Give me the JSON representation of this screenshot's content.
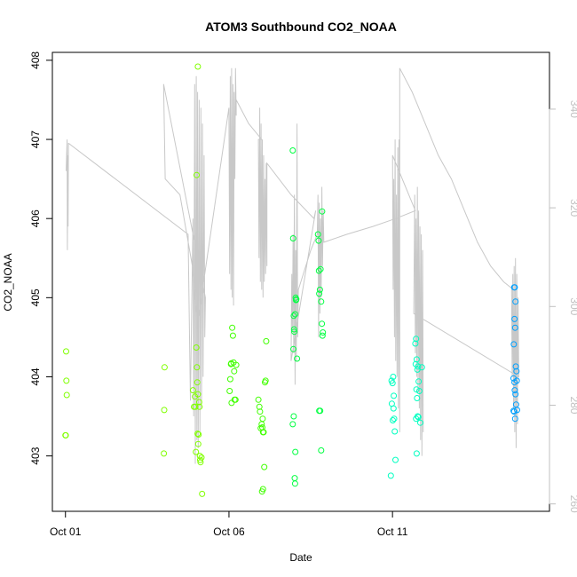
{
  "chart_data": {
    "type": "scatter",
    "title": "ATOM3 Southbound CO2_NOAA",
    "xlabel": "Date",
    "ylabel": "CO2_NOAA",
    "x_ticks": [
      "Oct 01",
      "Oct 06",
      "Oct 11"
    ],
    "x_tick_values": [
      0,
      5,
      10
    ],
    "x_range": [
      -0.4,
      14.8
    ],
    "y_ticks": [
      "403",
      "404",
      "405",
      "406",
      "407",
      "408"
    ],
    "ylim": [
      402.3,
      408.1
    ],
    "y2_ticks": [
      "260",
      "280",
      "300",
      "320",
      "340"
    ],
    "y2lim": [
      258.5,
      351.5
    ],
    "grid": false,
    "line_color": "#c8c8c8",
    "series": [
      {
        "color": "#80ff00",
        "points": [
          [
            0.02,
            404.32
          ],
          [
            0.03,
            403.95
          ],
          [
            0.04,
            403.77
          ],
          [
            0.0,
            403.26
          ],
          [
            0.01,
            403.26
          ],
          [
            3.03,
            404.12
          ],
          [
            3.02,
            403.58
          ],
          [
            3.01,
            403.03
          ],
          [
            3.9,
            403.83
          ],
          [
            3.93,
            403.62
          ],
          [
            3.96,
            403.75
          ],
          [
            3.97,
            403.62
          ],
          [
            3.99,
            403.05
          ],
          [
            4.0,
            404.37
          ],
          [
            4.02,
            404.12
          ],
          [
            4.03,
            403.93
          ],
          [
            4.05,
            403.78
          ],
          [
            4.06,
            403.15
          ],
          [
            4.07,
            403.27
          ],
          [
            4.09,
            403.68
          ],
          [
            4.1,
            403.62
          ],
          [
            4.11,
            403.0
          ],
          [
            4.12,
            402.95
          ],
          [
            4.13,
            402.92
          ],
          [
            4.16,
            402.98
          ],
          [
            4.18,
            402.52
          ],
          [
            4.04,
            403.28
          ],
          [
            4.01,
            406.55
          ],
          [
            4.05,
            407.92
          ]
        ]
      },
      {
        "color": "#40ff00",
        "points": [
          [
            5.02,
            403.82
          ],
          [
            5.04,
            403.97
          ],
          [
            5.06,
            404.16
          ],
          [
            5.07,
            404.17
          ],
          [
            5.08,
            403.67
          ],
          [
            5.1,
            404.62
          ],
          [
            5.12,
            404.52
          ],
          [
            5.14,
            404.18
          ],
          [
            5.16,
            404.07
          ],
          [
            5.17,
            403.71
          ],
          [
            5.2,
            403.71
          ],
          [
            5.22,
            404.15
          ],
          [
            5.9,
            403.71
          ],
          [
            5.93,
            403.62
          ],
          [
            5.95,
            403.56
          ],
          [
            5.97,
            403.35
          ],
          [
            6.0,
            403.4
          ],
          [
            6.02,
            403.36
          ],
          [
            6.03,
            403.47
          ],
          [
            6.04,
            403.3
          ],
          [
            6.06,
            403.3
          ],
          [
            6.08,
            402.86
          ],
          [
            6.1,
            403.93
          ],
          [
            6.12,
            403.95
          ],
          [
            6.14,
            404.45
          ],
          [
            6.01,
            402.55
          ],
          [
            6.04,
            402.58
          ]
        ]
      },
      {
        "color": "#00ff40",
        "points": [
          [
            6.95,
            406.86
          ],
          [
            6.96,
            405.75
          ],
          [
            6.98,
            404.77
          ],
          [
            6.99,
            404.6
          ],
          [
            7.0,
            404.57
          ],
          [
            7.02,
            404.79
          ],
          [
            7.04,
            405.0
          ],
          [
            7.05,
            404.97
          ],
          [
            7.06,
            404.98
          ],
          [
            6.97,
            404.35
          ],
          [
            7.08,
            404.23
          ],
          [
            6.98,
            403.5
          ],
          [
            6.95,
            403.4
          ],
          [
            7.03,
            403.05
          ],
          [
            7.01,
            402.72
          ],
          [
            7.02,
            402.65
          ],
          [
            7.72,
            405.8
          ],
          [
            7.74,
            405.72
          ],
          [
            7.75,
            405.34
          ],
          [
            7.76,
            405.05
          ],
          [
            7.78,
            405.1
          ],
          [
            7.8,
            405.36
          ],
          [
            7.82,
            404.95
          ],
          [
            7.84,
            404.67
          ],
          [
            7.86,
            404.52
          ],
          [
            7.87,
            404.56
          ],
          [
            7.85,
            406.09
          ],
          [
            7.76,
            403.57
          ],
          [
            7.79,
            403.57
          ],
          [
            7.82,
            403.07
          ]
        ]
      },
      {
        "color": "#00ffc0",
        "points": [
          [
            9.97,
            403.95
          ],
          [
            10.0,
            403.92
          ],
          [
            10.02,
            404.0
          ],
          [
            10.04,
            403.76
          ],
          [
            10.03,
            403.6
          ],
          [
            9.98,
            403.66
          ],
          [
            10.01,
            403.45
          ],
          [
            10.05,
            403.47
          ],
          [
            10.07,
            403.31
          ],
          [
            10.09,
            402.95
          ],
          [
            9.95,
            402.75
          ],
          [
            10.7,
            404.42
          ],
          [
            10.72,
            404.48
          ],
          [
            10.74,
            404.22
          ],
          [
            10.76,
            404.09
          ],
          [
            10.78,
            404.13
          ],
          [
            10.8,
            403.94
          ],
          [
            10.82,
            403.82
          ],
          [
            10.71,
            404.16
          ],
          [
            10.73,
            403.84
          ],
          [
            10.75,
            403.73
          ],
          [
            10.77,
            403.5
          ],
          [
            10.79,
            403.49
          ],
          [
            10.72,
            403.47
          ],
          [
            10.85,
            403.42
          ],
          [
            10.74,
            403.03
          ],
          [
            10.9,
            404.12
          ]
        ]
      },
      {
        "color": "#00a0ff",
        "points": [
          [
            13.72,
            405.13
          ],
          [
            13.74,
            405.13
          ],
          [
            13.76,
            404.95
          ],
          [
            13.73,
            404.73
          ],
          [
            13.75,
            404.62
          ],
          [
            13.71,
            404.41
          ],
          [
            13.77,
            404.13
          ],
          [
            13.79,
            404.07
          ],
          [
            13.7,
            403.98
          ],
          [
            13.73,
            403.93
          ],
          [
            13.8,
            403.95
          ],
          [
            13.74,
            403.83
          ],
          [
            13.76,
            403.78
          ],
          [
            13.78,
            403.65
          ],
          [
            13.7,
            403.57
          ],
          [
            13.72,
            403.56
          ],
          [
            13.81,
            403.58
          ],
          [
            13.75,
            403.47
          ]
        ]
      }
    ],
    "line_path": [
      [
        0.02,
        406.6
      ],
      [
        0.05,
        407.0
      ],
      [
        0.06,
        405.6
      ],
      [
        0.07,
        406.8
      ],
      [
        0.08,
        405.9
      ],
      [
        0.09,
        406.95
      ],
      [
        0.1,
        406.95
      ],
      [
        3.75,
        405.8
      ],
      [
        3.82,
        403.7
      ],
      [
        3.9,
        406.0
      ],
      [
        3.92,
        403.5
      ],
      [
        3.95,
        407.7
      ],
      [
        3.97,
        402.9
      ],
      [
        4.0,
        407.8
      ],
      [
        4.02,
        403.2
      ],
      [
        4.04,
        407.6
      ],
      [
        4.06,
        403.1
      ],
      [
        4.09,
        407.5
      ],
      [
        4.11,
        403.3
      ],
      [
        4.14,
        407.4
      ],
      [
        4.16,
        403.6
      ],
      [
        4.19,
        407.2
      ],
      [
        4.21,
        404.0
      ],
      [
        4.24,
        406.8
      ],
      [
        4.26,
        404.5
      ],
      [
        4.28,
        405.0
      ],
      [
        3.0,
        407.7
      ],
      [
        3.05,
        406.5
      ],
      [
        3.5,
        406.3
      ],
      [
        3.88,
        405.4
      ],
      [
        3.95,
        405.0
      ],
      [
        4.05,
        404.7
      ],
      [
        5.0,
        407.4
      ],
      [
        5.02,
        405.3
      ],
      [
        5.04,
        407.8
      ],
      [
        5.06,
        405.1
      ],
      [
        5.08,
        407.9
      ],
      [
        5.1,
        405.0
      ],
      [
        5.12,
        407.7
      ],
      [
        5.14,
        404.9
      ],
      [
        5.16,
        407.6
      ],
      [
        5.18,
        406.5
      ],
      [
        5.2,
        407.9
      ],
      [
        5.22,
        407.3
      ],
      [
        5.22,
        407.5
      ],
      [
        5.6,
        407.2
      ],
      [
        6.0,
        407.0
      ],
      [
        5.9,
        407.0
      ],
      [
        5.92,
        405.5
      ],
      [
        5.94,
        407.4
      ],
      [
        5.96,
        405.2
      ],
      [
        5.98,
        407.2
      ],
      [
        6.0,
        405.1
      ],
      [
        6.02,
        407.0
      ],
      [
        6.04,
        405.0
      ],
      [
        6.06,
        406.8
      ],
      [
        6.08,
        405.2
      ],
      [
        6.1,
        406.5
      ],
      [
        6.12,
        405.3
      ],
      [
        6.14,
        406.7
      ],
      [
        6.16,
        405.4
      ],
      [
        6.16,
        406.7
      ],
      [
        6.9,
        406.3
      ],
      [
        7.6,
        406.0
      ],
      [
        7.65,
        406.1
      ],
      [
        6.9,
        404.2
      ],
      [
        6.92,
        405.3
      ],
      [
        6.94,
        404.6
      ],
      [
        6.96,
        405.8
      ],
      [
        6.98,
        404.3
      ],
      [
        7.0,
        406.3
      ],
      [
        7.02,
        403.9
      ],
      [
        7.04,
        405.6
      ],
      [
        7.06,
        404.2
      ],
      [
        7.08,
        407.2
      ],
      [
        7.1,
        404.5
      ],
      [
        7.12,
        405.1
      ],
      [
        7.12,
        405.1
      ],
      [
        7.5,
        405.6
      ],
      [
        7.7,
        405.8
      ],
      [
        7.72,
        406.3
      ],
      [
        7.74,
        404.5
      ],
      [
        7.76,
        406.2
      ],
      [
        7.78,
        404.8
      ],
      [
        7.8,
        406.0
      ],
      [
        7.82,
        405.0
      ],
      [
        7.84,
        406.4
      ],
      [
        7.86,
        405.4
      ],
      [
        7.88,
        406.1
      ],
      [
        7.9,
        405.7
      ],
      [
        7.9,
        405.7
      ],
      [
        8.6,
        405.8
      ],
      [
        9.4,
        405.9
      ],
      [
        10.1,
        406.0
      ],
      [
        10.7,
        406.1
      ],
      [
        10.0,
        406.8
      ],
      [
        10.02,
        405.1
      ],
      [
        10.04,
        406.5
      ],
      [
        10.06,
        404.5
      ],
      [
        10.08,
        407.0
      ],
      [
        10.1,
        404.2
      ],
      [
        10.12,
        406.3
      ],
      [
        10.14,
        404.0
      ],
      [
        10.16,
        406.9
      ],
      [
        10.18,
        403.6
      ],
      [
        10.2,
        407.0
      ],
      [
        10.22,
        403.3
      ],
      [
        10.22,
        407.9
      ],
      [
        10.6,
        407.6
      ],
      [
        11.0,
        407.2
      ],
      [
        11.4,
        406.8
      ],
      [
        11.8,
        406.5
      ],
      [
        12.2,
        406.1
      ],
      [
        12.6,
        405.7
      ],
      [
        13.0,
        405.4
      ],
      [
        13.4,
        405.2
      ],
      [
        13.7,
        405.1
      ],
      [
        13.64,
        405.1
      ],
      [
        13.66,
        404.0
      ],
      [
        13.68,
        405.3
      ],
      [
        13.7,
        403.6
      ],
      [
        13.72,
        405.4
      ],
      [
        13.74,
        403.3
      ],
      [
        13.76,
        405.5
      ],
      [
        13.78,
        403.1
      ],
      [
        13.8,
        405.3
      ],
      [
        13.82,
        403.4
      ],
      [
        13.84,
        405.0
      ],
      [
        13.86,
        404.0
      ],
      [
        10.65,
        404.8
      ],
      [
        10.68,
        406.3
      ],
      [
        10.7,
        404.3
      ],
      [
        10.72,
        406.0
      ],
      [
        10.74,
        404.0
      ],
      [
        10.76,
        406.4
      ],
      [
        10.78,
        403.8
      ],
      [
        10.8,
        406.1
      ],
      [
        10.82,
        403.6
      ],
      [
        10.84,
        405.9
      ],
      [
        10.86,
        403.2
      ],
      [
        10.88,
        405.8
      ],
      [
        10.9,
        403.0
      ],
      [
        10.92,
        405.6
      ],
      [
        10.94,
        403.3
      ]
    ]
  }
}
